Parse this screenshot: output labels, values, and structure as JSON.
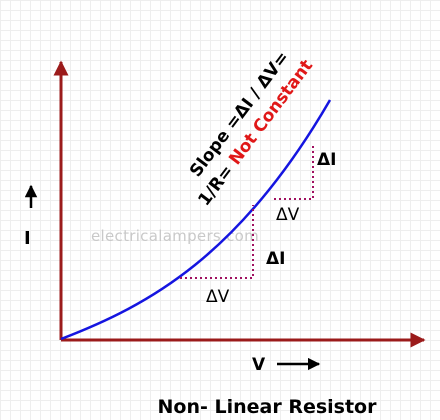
{
  "title": "Non- Linear Resistor",
  "watermark": "electricalampers.com",
  "axes": {
    "x_label": "V",
    "y_label": "I",
    "color": "#9B1B1B"
  },
  "curve": {
    "color": "#1515E0"
  },
  "step_color": "#A01060",
  "annotation": {
    "line1": "Slope =ΔI / ΔV=",
    "line2_prefix": "1/R= ",
    "line2_highlight": "Not Constant",
    "highlight_color": "#E01818"
  },
  "deltas": {
    "lower_dv": "ΔV",
    "lower_di": "ΔI",
    "upper_dv": "ΔV",
    "upper_di": "ΔI"
  }
}
